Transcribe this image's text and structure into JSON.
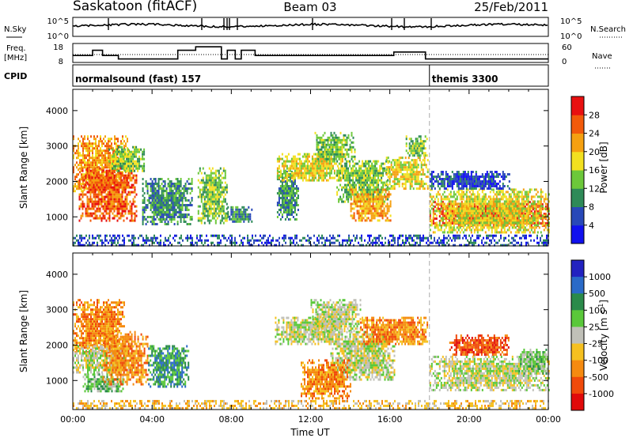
{
  "header": {
    "title": "Saskatoon (fitACF)",
    "beam": "Beam 03",
    "date": "25/Feb/2011"
  },
  "strip": {
    "nsky_label": "N.Sky",
    "nsky_ticks": [
      "10^5",
      "10^0"
    ],
    "nsearch_label": "N.Search",
    "freq_label": "Freq.",
    "freq_unit": "[MHz]",
    "freq_ticks": [
      "18",
      "8"
    ],
    "nave_ticks": [
      "60",
      "0"
    ],
    "nave_label": "Nave",
    "cpid_label": "CPID",
    "cpid_modes": [
      {
        "label": "normalsound (fast) 157",
        "start_hour": 0
      },
      {
        "label": "themis 3300",
        "start_hour": 18
      }
    ]
  },
  "chart_data": [
    {
      "type": "heatmap",
      "quantity": "Power",
      "xlabel": "",
      "ylabel": "Slant Range [km]",
      "xlim": [
        0,
        24
      ],
      "ylim": [
        180,
        4600
      ],
      "yticks": [
        1000,
        2000,
        3000,
        4000
      ],
      "colorbar": {
        "label": "Power [dB]",
        "ticks": [
          "4",
          "8",
          "12",
          "16",
          "20",
          "24",
          "28"
        ],
        "colors": [
          "#1010ee",
          "#2848b8",
          "#2e8a58",
          "#6cc83a",
          "#f2e020",
          "#f5a010",
          "#f25a0a",
          "#e81010"
        ]
      },
      "regions": [
        {
          "hours": [
            0.0,
            2.8
          ],
          "range_km": [
            1700,
            3300
          ],
          "level": 5
        },
        {
          "hours": [
            0.3,
            3.2
          ],
          "range_km": [
            900,
            2400
          ],
          "level": 6
        },
        {
          "hours": [
            1.8,
            3.6
          ],
          "range_km": [
            2300,
            3000
          ],
          "level": 3
        },
        {
          "hours": [
            3.5,
            6.0
          ],
          "range_km": [
            800,
            2100
          ],
          "level": 2
        },
        {
          "hours": [
            6.3,
            7.8
          ],
          "range_km": [
            800,
            2400
          ],
          "level": 3
        },
        {
          "hours": [
            7.8,
            9.0
          ],
          "range_km": [
            850,
            1300
          ],
          "level": 2
        },
        {
          "hours": [
            10.3,
            11.4
          ],
          "range_km": [
            900,
            2300
          ],
          "level": 2
        },
        {
          "hours": [
            10.3,
            13.6
          ],
          "range_km": [
            2000,
            2800
          ],
          "level": 4
        },
        {
          "hours": [
            12.2,
            14.2
          ],
          "range_km": [
            2600,
            3400
          ],
          "level": 3
        },
        {
          "hours": [
            13.3,
            16.0
          ],
          "range_km": [
            1400,
            2600
          ],
          "level": 3
        },
        {
          "hours": [
            14.0,
            16.0
          ],
          "range_km": [
            900,
            1800
          ],
          "level": 5
        },
        {
          "hours": [
            15.8,
            17.9
          ],
          "range_km": [
            1800,
            2700
          ],
          "level": 4
        },
        {
          "hours": [
            16.8,
            17.9
          ],
          "range_km": [
            2700,
            3300
          ],
          "level": 3
        },
        {
          "hours": [
            18.0,
            24.0
          ],
          "range_km": [
            750,
            1450
          ],
          "level": 7
        },
        {
          "hours": [
            18.0,
            24.0
          ],
          "range_km": [
            550,
            1800
          ],
          "level": 4
        },
        {
          "hours": [
            18.0,
            22.0
          ],
          "range_km": [
            1800,
            2300
          ],
          "level": 1
        },
        {
          "hours": [
            0.0,
            24.0
          ],
          "range_km": [
            200,
            500
          ],
          "level": 1
        }
      ]
    },
    {
      "type": "heatmap",
      "quantity": "Velocity",
      "xlabel": "Time UT",
      "ylabel": "Slant Range [km]",
      "xlim": [
        0,
        24
      ],
      "ylim": [
        180,
        4600
      ],
      "xticks": [
        "00:00",
        "04:00",
        "08:00",
        "12:00",
        "16:00",
        "20:00",
        "00:00"
      ],
      "yticks": [
        1000,
        2000,
        3000,
        4000
      ],
      "colorbar": {
        "label": "Velocity [m s^-1]",
        "ticks": [
          "1000",
          "500",
          "100",
          "25",
          "-25",
          "-100",
          "-500",
          "-1000"
        ],
        "colors": [
          "#2222c0",
          "#2a6ac8",
          "#2a8a4a",
          "#5ac83a",
          "#c0c0b8",
          "#f5c020",
          "#f58a10",
          "#f04a0a",
          "#e00a0a"
        ]
      },
      "regions": [
        {
          "hours": [
            0.0,
            2.6
          ],
          "range_km": [
            1800,
            3300
          ],
          "level": 6
        },
        {
          "hours": [
            0.0,
            3.0
          ],
          "range_km": [
            1200,
            2000
          ],
          "level": 4
        },
        {
          "hours": [
            0.5,
            2.5
          ],
          "range_km": [
            700,
            1200
          ],
          "level": 3
        },
        {
          "hours": [
            1.5,
            3.8
          ],
          "range_km": [
            900,
            2400
          ],
          "level": 6
        },
        {
          "hours": [
            3.8,
            5.8
          ],
          "range_km": [
            800,
            2000
          ],
          "level": 2
        },
        {
          "hours": [
            10.2,
            13.6
          ],
          "range_km": [
            2000,
            2800
          ],
          "level": 4
        },
        {
          "hours": [
            12.0,
            14.5
          ],
          "range_km": [
            2400,
            3300
          ],
          "level": 4
        },
        {
          "hours": [
            13.0,
            16.2
          ],
          "range_km": [
            1000,
            2400
          ],
          "level": 4
        },
        {
          "hours": [
            14.5,
            17.9
          ],
          "range_km": [
            2000,
            2800
          ],
          "level": 6
        },
        {
          "hours": [
            11.5,
            14.0
          ],
          "range_km": [
            500,
            1600
          ],
          "level": 6
        },
        {
          "hours": [
            18.0,
            24.0
          ],
          "range_km": [
            700,
            1700
          ],
          "level": 4
        },
        {
          "hours": [
            19.0,
            22.0
          ],
          "range_km": [
            1700,
            2300
          ],
          "level": 7
        },
        {
          "hours": [
            22.5,
            24.0
          ],
          "range_km": [
            1200,
            1900
          ],
          "level": 3
        },
        {
          "hours": [
            0.0,
            24.0
          ],
          "range_km": [
            200,
            450
          ],
          "level": 5
        }
      ]
    }
  ]
}
